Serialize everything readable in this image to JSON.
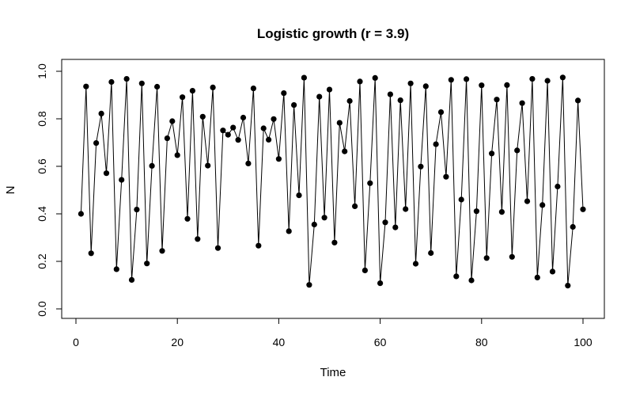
{
  "chart_data": {
    "type": "line",
    "title": "Logistic growth (r = 3.9)",
    "xlabel": "Time",
    "ylabel": "N",
    "xlim": [
      0,
      100
    ],
    "ylim": [
      0,
      1
    ],
    "x_ticks": [
      0,
      20,
      40,
      60,
      80,
      100
    ],
    "y_ticks": [
      0.0,
      0.2,
      0.4,
      0.6,
      0.8,
      1.0
    ],
    "y_tick_labels": [
      "0.0",
      "0.2",
      "0.4",
      "0.6",
      "0.8",
      "1.0"
    ],
    "grid": false,
    "line_color": "#000000",
    "marker": "filled-circle",
    "x": [
      1,
      2,
      3,
      4,
      5,
      6,
      7,
      8,
      9,
      10,
      11,
      12,
      13,
      14,
      15,
      16,
      17,
      18,
      19,
      20,
      21,
      22,
      23,
      24,
      25,
      26,
      27,
      28,
      29,
      30,
      31,
      32,
      33,
      34,
      35,
      36,
      37,
      38,
      39,
      40,
      41,
      42,
      43,
      44,
      45,
      46,
      47,
      48,
      49,
      50,
      51,
      52,
      53,
      54,
      55,
      56,
      57,
      58,
      59,
      60,
      61,
      62,
      63,
      64,
      65,
      66,
      67,
      68,
      69,
      70,
      71,
      72,
      73,
      74,
      75,
      76,
      77,
      78,
      79,
      80,
      81,
      82,
      83,
      84,
      85,
      86,
      87,
      88,
      89,
      90,
      91,
      92,
      93,
      94,
      95,
      96,
      97,
      98,
      99,
      100
    ],
    "y": [
      0.4,
      0.936,
      0.234,
      0.698,
      0.822,
      0.571,
      0.955,
      0.167,
      0.543,
      0.968,
      0.122,
      0.418,
      0.949,
      0.191,
      0.602,
      0.935,
      0.244,
      0.718,
      0.79,
      0.647,
      0.891,
      0.379,
      0.918,
      0.294,
      0.809,
      0.603,
      0.932,
      0.256,
      0.751,
      0.733,
      0.763,
      0.711,
      0.805,
      0.612,
      0.928,
      0.266,
      0.76,
      0.712,
      0.799,
      0.631,
      0.908,
      0.327,
      0.858,
      0.478,
      0.973,
      0.101,
      0.355,
      0.893,
      0.384,
      0.923,
      0.279,
      0.783,
      0.663,
      0.875,
      0.432,
      0.957,
      0.162,
      0.529,
      0.972,
      0.108,
      0.364,
      0.903,
      0.343,
      0.878,
      0.42,
      0.949,
      0.19,
      0.599,
      0.937,
      0.235,
      0.693,
      0.828,
      0.556,
      0.964,
      0.137,
      0.46,
      0.967,
      0.12,
      0.411,
      0.941,
      0.214,
      0.654,
      0.881,
      0.408,
      0.942,
      0.219,
      0.667,
      0.866,
      0.453,
      0.968,
      0.132,
      0.437,
      0.96,
      0.157,
      0.515,
      0.974,
      0.098,
      0.345,
      0.877,
      0.419
    ]
  }
}
